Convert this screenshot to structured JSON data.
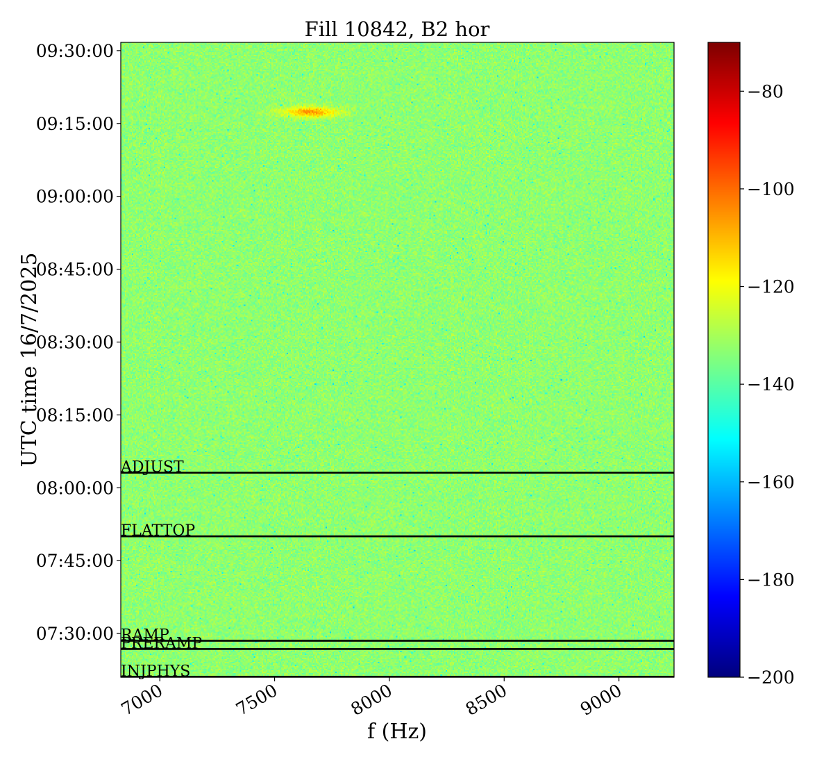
{
  "chart_data": {
    "type": "heatmap",
    "title": "Fill 10842, B2 hor",
    "xlabel": "f (Hz)",
    "ylabel": "UTC time 16/7/2025",
    "xlim": [
      6830,
      9240
    ],
    "ylim_minutes_utc": [
      441,
      571.7
    ],
    "x_ticks": [
      {
        "value": 7000,
        "label": "7000"
      },
      {
        "value": 7500,
        "label": "7500"
      },
      {
        "value": 8000,
        "label": "8000"
      },
      {
        "value": 8500,
        "label": "8500"
      },
      {
        "value": 9000,
        "label": "9000"
      }
    ],
    "y_ticks": [
      {
        "minutes": 450,
        "label": "07:30:00"
      },
      {
        "minutes": 465,
        "label": "07:45:00"
      },
      {
        "minutes": 480,
        "label": "08:00:00"
      },
      {
        "minutes": 495,
        "label": "08:15:00"
      },
      {
        "minutes": 510,
        "label": "08:30:00"
      },
      {
        "minutes": 525,
        "label": "08:45:00"
      },
      {
        "minutes": 540,
        "label": "09:00:00"
      },
      {
        "minutes": 555,
        "label": "09:15:00"
      },
      {
        "minutes": 570,
        "label": "09:30:00"
      }
    ],
    "beam_modes": [
      {
        "label": "INJPHYS",
        "minutes": 441.1
      },
      {
        "label": "PRERAMP",
        "minutes": 446.8
      },
      {
        "label": "RAMP",
        "minutes": 448.5
      },
      {
        "label": "FLATTOP",
        "minutes": 470.0
      },
      {
        "label": "ADJUST",
        "minutes": 483.1
      }
    ],
    "hotspot": {
      "freq_hz": 7650,
      "minutes": 557.5,
      "level": -105
    },
    "background_level": -133,
    "colorbar": {
      "min": -200,
      "max": -70,
      "colormap": "jet",
      "ticks": [
        {
          "value": -80,
          "label": "−80"
        },
        {
          "value": -100,
          "label": "−100"
        },
        {
          "value": -120,
          "label": "−120"
        },
        {
          "value": -140,
          "label": "−140"
        },
        {
          "value": -160,
          "label": "−160"
        },
        {
          "value": -180,
          "label": "−180"
        },
        {
          "value": -200,
          "label": "−200"
        }
      ]
    }
  }
}
